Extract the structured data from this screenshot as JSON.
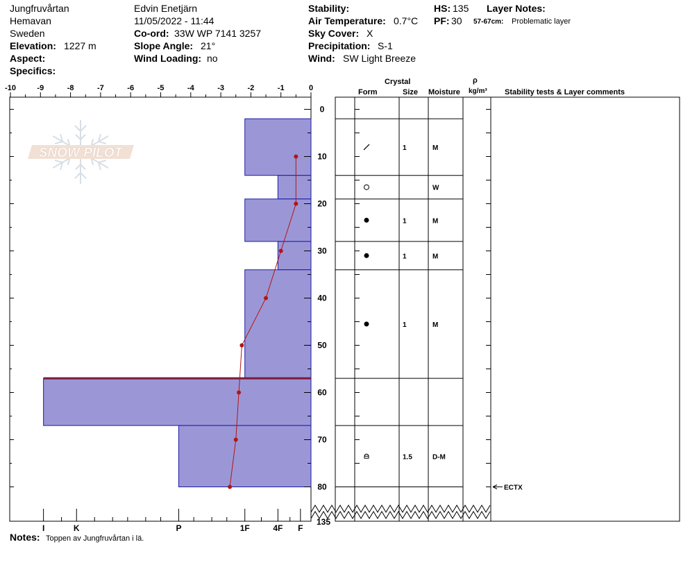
{
  "header": {
    "location_name": "Jungfruvårtan",
    "region": "Hemavan",
    "country": "Sweden",
    "elevation_label": "Elevation:",
    "elevation_value": "1227 m",
    "aspect_label": "Aspect:",
    "specifics_label": "Specifics:",
    "observer": "Edvin Enetjärn",
    "datetime": "11/05/2022 - 11:44",
    "coord_label": "Co-ord:",
    "coord_value": "33W WP 7141 3257",
    "slope_label": "Slope Angle:",
    "slope_value": "21°",
    "wind_loading_label": "Wind Loading:",
    "wind_loading_value": "no",
    "stability_label": "Stability:",
    "air_temp_label": "Air Temperature:",
    "air_temp_value": "0.7°C",
    "sky_cover_label": "Sky Cover:",
    "sky_cover_value": "X",
    "precip_label": "Precipitation:",
    "precip_value": "S-1",
    "wind_label": "Wind:",
    "wind_value": "SW Light Breeze",
    "hs_label": "HS:",
    "hs_value": "135",
    "pf_label": "PF:",
    "pf_value": "30",
    "layer_notes_label": "Layer Notes:",
    "layer_note_range": "57-67cm:",
    "layer_note_text": "Problematic layer"
  },
  "columns": {
    "crystal": "Crystal",
    "form": "Form",
    "size": "Size",
    "moisture": "Moisture",
    "rho": "ρ",
    "density_unit": "kg/m³",
    "stability": "Stability tests & Layer comments"
  },
  "notes": {
    "label": "Notes:",
    "text": "Toppen av Jungfruvårtan i lä."
  },
  "watermark": "SNOW PILOT",
  "colors": {
    "layer_fill": "#9b97d6",
    "layer_stroke": "#1a1aa8",
    "temp_line": "#b41414",
    "problem_layer": "#7a1a3a"
  },
  "chart_data": {
    "type": "snow-profile",
    "temperature_axis": {
      "ticks": [
        -10,
        -9,
        -8,
        -7,
        -6,
        -5,
        -4,
        -3,
        -2,
        -1,
        0
      ],
      "tick_labels": [
        "-10",
        "-9",
        "-8",
        "-7",
        "-6",
        "-5",
        "-4",
        "-3",
        "-2",
        "-1",
        "0"
      ],
      "range": [
        -10,
        0
      ]
    },
    "depth_axis": {
      "ticks": [
        0,
        10,
        20,
        30,
        40,
        50,
        60,
        70,
        80
      ],
      "tick_labels": [
        "0",
        "10",
        "20",
        "30",
        "40",
        "50",
        "60",
        "70",
        "80"
      ],
      "range": [
        0,
        80
      ],
      "bottom_label": "135"
    },
    "hardness_axis": {
      "labels": [
        "I",
        "K",
        "P",
        "1F",
        "4F",
        "F"
      ],
      "values": [
        8.9,
        7.8,
        4.4,
        2.2,
        1.1,
        0.35
      ]
    },
    "layers": [
      {
        "top": 2,
        "bottom": 14,
        "hardness": 2.2,
        "form": "decomposing",
        "size": "1",
        "moisture": "M"
      },
      {
        "top": 14,
        "bottom": 19,
        "hardness": 1.1,
        "form": "melt-freeze",
        "size": "",
        "moisture": "W"
      },
      {
        "top": 19,
        "bottom": 28,
        "hardness": 2.2,
        "form": "rounded",
        "size": "1",
        "moisture": "M"
      },
      {
        "top": 28,
        "bottom": 34,
        "hardness": 1.1,
        "form": "rounded",
        "size": "1",
        "moisture": "M"
      },
      {
        "top": 34,
        "bottom": 57,
        "hardness": 2.2,
        "form": "rounded",
        "size": "1",
        "moisture": "M"
      },
      {
        "top": 57,
        "bottom": 67,
        "hardness": 8.9,
        "form": "",
        "size": "",
        "moisture": ""
      },
      {
        "top": 67,
        "bottom": 80,
        "hardness": 4.4,
        "form": "crust",
        "size": "1.5",
        "moisture": "D-M"
      }
    ],
    "problematic_layer_depth": 57,
    "temperature_profile": {
      "depth": [
        10,
        20,
        30,
        40,
        50,
        60,
        70,
        80
      ],
      "temp": [
        -0.5,
        -0.5,
        -1.0,
        -1.5,
        -2.3,
        -2.4,
        -2.5,
        -2.7
      ]
    },
    "stability_tests": [
      {
        "depth": 80,
        "label": "ECTX"
      }
    ]
  }
}
